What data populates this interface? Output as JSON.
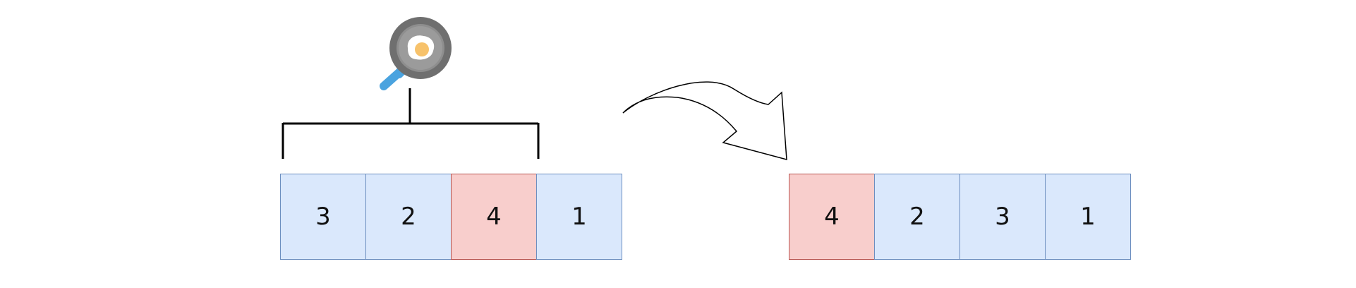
{
  "before": {
    "cells": [
      {
        "value": "3",
        "highlight": false
      },
      {
        "value": "2",
        "highlight": false
      },
      {
        "value": "4",
        "highlight": true
      },
      {
        "value": "1",
        "highlight": false
      }
    ]
  },
  "after": {
    "cells": [
      {
        "value": "4",
        "highlight": true
      },
      {
        "value": "2",
        "highlight": false
      },
      {
        "value": "3",
        "highlight": false
      },
      {
        "value": "1",
        "highlight": false
      }
    ]
  },
  "icons": {
    "spatula": "frying-pan-spatula-icon",
    "flip_arrow": "curved-arrow-icon"
  },
  "colors": {
    "cell_fill": "#dae8fc",
    "cell_border": "#6c8ebf",
    "highlight_fill": "#f8cecc",
    "highlight_border": "#b85450"
  }
}
